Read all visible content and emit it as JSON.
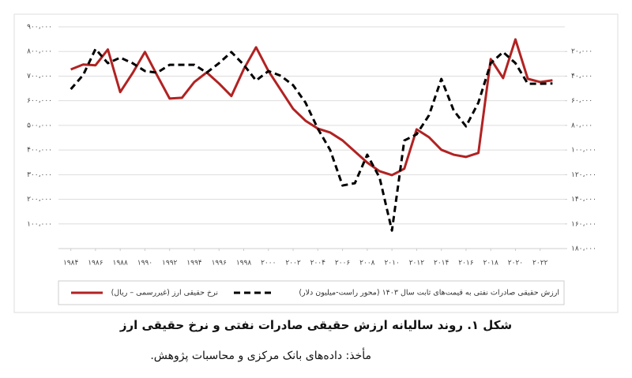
{
  "chart_data": {
    "type": "line",
    "caption": "شکل ۱. روند سالیانه ارزش حقیقی صادرات نفتی و نرخ حقیقی ارز",
    "source": "مأخذ: داده‌های بانک مرکزی و محاسبات پژوهش.",
    "x": [
      1984,
      1985,
      1986,
      1987,
      1988,
      1989,
      1990,
      1991,
      1992,
      1993,
      1994,
      1995,
      1996,
      1997,
      1998,
      1999,
      2000,
      2001,
      2002,
      2003,
      2004,
      2005,
      2006,
      2007,
      2008,
      2009,
      2010,
      2011,
      2012,
      2013,
      2014,
      2015,
      2016,
      2017,
      2018,
      2019,
      2020,
      2021,
      2022,
      2023
    ],
    "xlim": [
      1983,
      2024
    ],
    "xticks": [
      {
        "value": 1984,
        "label": "۱۹۸۴"
      },
      {
        "value": 1986,
        "label": "۱۹۸۶"
      },
      {
        "value": 1988,
        "label": "۱۹۸۸"
      },
      {
        "value": 1990,
        "label": "۱۹۹۰"
      },
      {
        "value": 1992,
        "label": "۱۹۹۲"
      },
      {
        "value": 1994,
        "label": "۱۹۹۴"
      },
      {
        "value": 1996,
        "label": "۱۹۹۶"
      },
      {
        "value": 1998,
        "label": "۱۹۹۸"
      },
      {
        "value": 2000,
        "label": "۲۰۰۰"
      },
      {
        "value": 2002,
        "label": "۲۰۰۲"
      },
      {
        "value": 2004,
        "label": "۲۰۰۴"
      },
      {
        "value": 2006,
        "label": "۲۰۰۶"
      },
      {
        "value": 2008,
        "label": "۲۰۰۸"
      },
      {
        "value": 2010,
        "label": "۲۰۱۰"
      },
      {
        "value": 2012,
        "label": "۲۰۱۲"
      },
      {
        "value": 2014,
        "label": "۲۰۱۴"
      },
      {
        "value": 2016,
        "label": "۲۰۱۶"
      },
      {
        "value": 2018,
        "label": "۲۰۱۸"
      },
      {
        "value": 2020,
        "label": "۲۰۲۰"
      },
      {
        "value": 2022,
        "label": "۲۰۲۲"
      }
    ],
    "ylim": [
      0,
      900000
    ],
    "yticks": [
      {
        "value": 100000,
        "label": "۱۰۰،۰۰۰"
      },
      {
        "value": 200000,
        "label": "۲۰۰،۰۰۰"
      },
      {
        "value": 300000,
        "label": "۳۰۰،۰۰۰"
      },
      {
        "value": 400000,
        "label": "۴۰۰،۰۰۰"
      },
      {
        "value": 500000,
        "label": "۵۰۰،۰۰۰"
      },
      {
        "value": 600000,
        "label": "۶۰۰،۰۰۰"
      },
      {
        "value": 700000,
        "label": "۷۰۰،۰۰۰"
      },
      {
        "value": 800000,
        "label": "۸۰۰،۰۰۰"
      },
      {
        "value": 900000,
        "label": "۹۰۰،۰۰۰"
      }
    ],
    "y2lim": [
      180000,
      0
    ],
    "y2ticks": [
      {
        "value": 20000,
        "label": "۲۰،۰۰۰"
      },
      {
        "value": 40000,
        "label": "۴۰،۰۰۰"
      },
      {
        "value": 60000,
        "label": "۶۰،۰۰۰"
      },
      {
        "value": 80000,
        "label": "۸۰،۰۰۰"
      },
      {
        "value": 100000,
        "label": "۱۰۰،۰۰۰"
      },
      {
        "value": 120000,
        "label": "۱۲۰،۰۰۰"
      },
      {
        "value": 140000,
        "label": "۱۴۰،۰۰۰"
      },
      {
        "value": 160000,
        "label": "۱۶۰،۰۰۰"
      },
      {
        "value": 180000,
        "label": "۱۸۰،۰۰۰"
      }
    ],
    "grid": true,
    "series": [
      {
        "name": "نرخ حقیقی ارز (غیررسمی – ریال)",
        "color": "#b22222",
        "dash": false,
        "axis": "y",
        "values": [
          727000,
          747000,
          744000,
          808000,
          635000,
          712000,
          798000,
          702000,
          609000,
          612000,
          676000,
          715000,
          670000,
          619000,
          728000,
          817000,
          721000,
          644000,
          567000,
          519000,
          487000,
          471000,
          439000,
          394000,
          349000,
          314000,
          298000,
          324000,
          484000,
          452000,
          401000,
          381000,
          372000,
          388000,
          769000,
          692000,
          849000,
          689000,
          676000,
          683000
        ]
      },
      {
        "name": "ارزش حقیقی صادرات نفتی به قیمت‌های ثابت سال ۱۴۰۳ (محور راست-میلیون دلار)",
        "color": "#000000",
        "dash": true,
        "axis": "y2",
        "values": [
          50600,
          39100,
          18000,
          29500,
          25000,
          29500,
          35900,
          37200,
          30800,
          30800,
          30800,
          37200,
          29500,
          20500,
          30800,
          43600,
          35900,
          39700,
          47400,
          61500,
          82700,
          100000,
          128800,
          126900,
          103800,
          122400,
          165400,
          92300,
          87200,
          71800,
          42300,
          67900,
          80800,
          61500,
          29500,
          20500,
          29500,
          46200,
          46200,
          46000
        ]
      }
    ]
  }
}
